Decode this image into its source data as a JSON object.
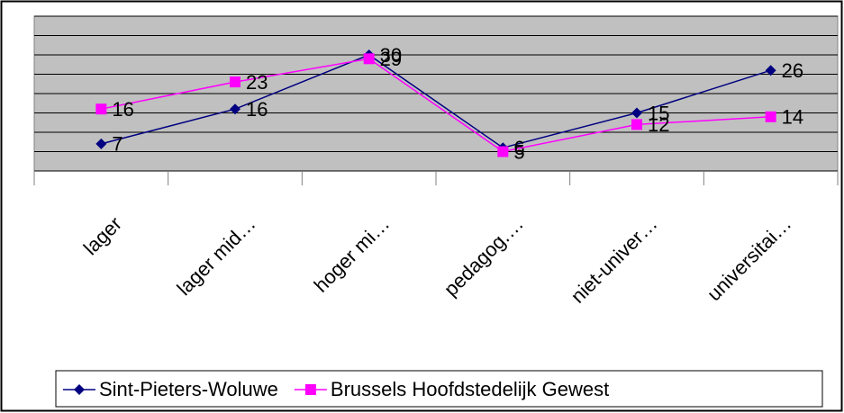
{
  "chart_data": {
    "type": "line",
    "categories": [
      "lager",
      "lager mid…",
      "hoger mi…",
      "pedagog.…",
      "niet-univer…",
      "universitai…"
    ],
    "series": [
      {
        "name": "Sint-Pieters-Woluwe",
        "color": "#000080",
        "marker": "diamond",
        "values": [
          7,
          16,
          30,
          6,
          15,
          26
        ]
      },
      {
        "name": "Brussels Hoofdstedelijk Gewest",
        "color": "#ff00ff",
        "marker": "square",
        "values": [
          16,
          23,
          29,
          5,
          12,
          14
        ]
      }
    ],
    "ylim": [
      0,
      40
    ],
    "yticks": [
      0,
      5,
      10,
      15,
      20,
      25,
      30,
      35,
      40
    ],
    "grid": true,
    "legend": "bottom"
  }
}
